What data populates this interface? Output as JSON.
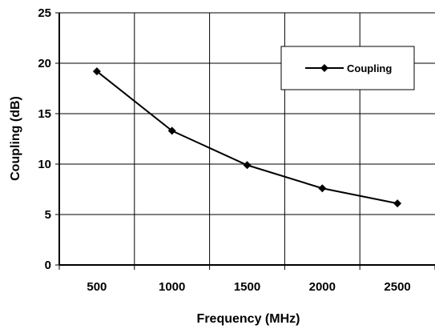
{
  "chart_data": {
    "type": "line",
    "title": "",
    "xlabel": "Frequency (MHz)",
    "ylabel": "Coupling (dB)",
    "categories": [
      "500",
      "1000",
      "1500",
      "2000",
      "2500"
    ],
    "y_ticks": [
      "0",
      "5",
      "10",
      "15",
      "20",
      "25"
    ],
    "ylim": [
      0,
      25
    ],
    "grid": true,
    "legend_position": "top-right",
    "series": [
      {
        "name": "Coupling",
        "values": [
          19.2,
          13.3,
          9.9,
          7.6,
          6.1
        ],
        "color": "#000000",
        "marker": "diamond"
      }
    ]
  }
}
